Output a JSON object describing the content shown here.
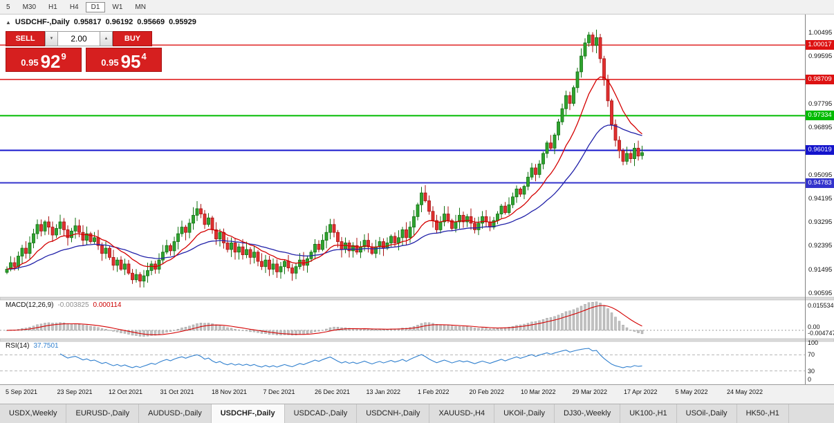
{
  "toolbar": {
    "buttons": [
      "5",
      "M30",
      "H1",
      "H4",
      "D1",
      "W1",
      "MN"
    ],
    "active": "D1"
  },
  "chart_header": {
    "collapse_icon": "▲",
    "symbol": "USDCHF-,Daily",
    "open": "0.95817",
    "high": "0.96192",
    "low": "0.95669",
    "close": "0.95929"
  },
  "trade_panel": {
    "sell_label": "SELL",
    "buy_label": "BUY",
    "volume": "2.00",
    "vol_down_icon": "▼",
    "vol_up_icon": "▲",
    "sell_price_prefix": "0.95",
    "sell_price_big": "92",
    "sell_price_sup": "9",
    "buy_price_prefix": "0.95",
    "buy_price_big": "95",
    "buy_price_sup": "4"
  },
  "indicators": {
    "macd": {
      "label": "MACD(12,26,9)",
      "main_value": "-0.003825",
      "signal_value": "0.000114",
      "axis": [
        "0.0155340",
        "0.00",
        "-0.0047470"
      ]
    },
    "rsi": {
      "label": "RSI(14)",
      "value": "37.7501",
      "axis": [
        "100",
        "70",
        "30",
        "0"
      ]
    }
  },
  "levels": [
    {
      "price": 1.00017,
      "color": "#dd1111",
      "width": 1.4
    },
    {
      "price": 0.98709,
      "color": "#dd1111",
      "width": 1.4
    },
    {
      "price": 0.97334,
      "color": "#00bb00",
      "width": 2
    },
    {
      "price": 0.96019,
      "color": "#1414cc",
      "width": 2
    },
    {
      "price": 0.94783,
      "color": "#3333cc",
      "width": 2
    }
  ],
  "time_axis": {
    "dates": [
      "5 Sep 2021",
      "23 Sep 2021",
      "12 Oct 2021",
      "31 Oct 2021",
      "18 Nov 2021",
      "7 Dec 2021",
      "26 Dec 2021",
      "13 Jan 2022",
      "1 Feb 2022",
      "20 Feb 2022",
      "10 Mar 2022",
      "29 Mar 2022",
      "17 Apr 2022",
      "5 May 2022",
      "24 May 2022"
    ]
  },
  "tabs": {
    "items": [
      "USDX,Weekly",
      "EURUSD-,Daily",
      "AUDUSD-,Daily",
      "USDCHF-,Daily",
      "USDCAD-,Daily",
      "USDCNH-,Daily",
      "XAUUSD-,H4",
      "UKOil-,Daily",
      "DJ30-,Weekly",
      "UK100-,H1",
      "USOil-,Daily",
      "HK50-,H1"
    ],
    "active": "USDCHF-,Daily"
  },
  "chart_data": {
    "type": "candlestick",
    "symbol": "USDCHF",
    "period": "Daily",
    "last_ohlc": {
      "open": 0.95817,
      "high": 0.96192,
      "low": 0.95669,
      "close": 0.95929
    },
    "y_ticks": [
      1.00495,
      0.99595,
      0.98695,
      0.97795,
      0.96895,
      0.95995,
      0.95095,
      0.94195,
      0.93295,
      0.92395,
      0.91495,
      0.90595
    ],
    "level_lines": [
      1.00017,
      0.98709,
      0.97334,
      0.96019,
      0.94783
    ],
    "ma_fast_period": 13,
    "ma_slow_period": 34,
    "macd": {
      "fast": 12,
      "slow": 26,
      "signal": 9,
      "current_main": -0.003825,
      "current_signal": 0.000114
    },
    "rsi": {
      "period": 14,
      "current": 37.7501,
      "levels": [
        70,
        30
      ]
    },
    "colors": {
      "up": "#2fa32f",
      "up_stroke": "#107010",
      "down": "#e03030",
      "down_stroke": "#a81212",
      "ma_fast": "#d40000",
      "ma_slow": "#2020a8",
      "macd_hist": "#c2c2c2",
      "macd_hist_stroke": "#8e8e8e",
      "macd_signal": "#d40000",
      "rsi_line": "#2f7fce",
      "rsi_level": "#b5b5b5"
    },
    "closes": [
      0.915,
      0.9175,
      0.916,
      0.92,
      0.923,
      0.921,
      0.925,
      0.9285,
      0.932,
      0.9295,
      0.933,
      0.931,
      0.928,
      0.9305,
      0.933,
      0.93,
      0.927,
      0.9295,
      0.9315,
      0.929,
      0.926,
      0.9285,
      0.9255,
      0.927,
      0.924,
      0.921,
      0.923,
      0.9195,
      0.9165,
      0.9185,
      0.915,
      0.917,
      0.9135,
      0.911,
      0.913,
      0.9105,
      0.9125,
      0.9145,
      0.917,
      0.915,
      0.9185,
      0.9215,
      0.924,
      0.922,
      0.9255,
      0.9285,
      0.931,
      0.929,
      0.9325,
      0.9355,
      0.938,
      0.936,
      0.932,
      0.9345,
      0.93,
      0.9265,
      0.929,
      0.925,
      0.9225,
      0.925,
      0.9215,
      0.9235,
      0.9205,
      0.9225,
      0.9195,
      0.9215,
      0.918,
      0.916,
      0.9185,
      0.915,
      0.917,
      0.914,
      0.916,
      0.918,
      0.9155,
      0.9135,
      0.916,
      0.9185,
      0.9165,
      0.919,
      0.9215,
      0.9245,
      0.9225,
      0.926,
      0.929,
      0.932,
      0.929,
      0.9255,
      0.9225,
      0.925,
      0.922,
      0.924,
      0.9215,
      0.9235,
      0.926,
      0.9235,
      0.921,
      0.9235,
      0.9255,
      0.923,
      0.925,
      0.9275,
      0.925,
      0.927,
      0.93,
      0.927,
      0.931,
      0.935,
      0.9395,
      0.944,
      0.941,
      0.937,
      0.9335,
      0.93,
      0.933,
      0.936,
      0.9335,
      0.9305,
      0.933,
      0.9355,
      0.933,
      0.935,
      0.9325,
      0.93,
      0.9325,
      0.935,
      0.933,
      0.931,
      0.9335,
      0.936,
      0.939,
      0.9365,
      0.9395,
      0.9425,
      0.9455,
      0.9435,
      0.9465,
      0.95,
      0.9535,
      0.951,
      0.955,
      0.959,
      0.963,
      0.961,
      0.966,
      0.971,
      0.976,
      0.981,
      0.978,
      0.984,
      0.99,
      0.996,
      1.001,
      1.004,
      1.0,
      1.003,
      0.995,
      0.987,
      0.979,
      0.97,
      0.964,
      0.96,
      0.956,
      0.959,
      0.957,
      0.961,
      0.958,
      0.95929
    ]
  }
}
